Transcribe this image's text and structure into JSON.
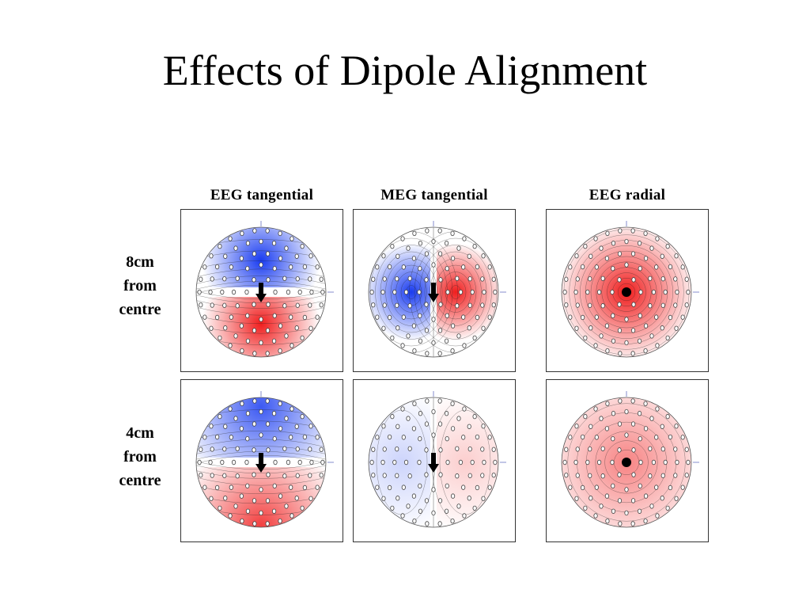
{
  "slide": {
    "title": "Effects of Dipole Alignment"
  },
  "columns": [
    {
      "label": "EEG tangential",
      "kind": "eeg-tan"
    },
    {
      "label": "MEG tangential",
      "kind": "meg-tan"
    },
    {
      "label": "EEG radial",
      "kind": "eeg-rad"
    }
  ],
  "rows": [
    {
      "lines": [
        "8cm",
        "from",
        "centre"
      ],
      "depth": "shallow"
    },
    {
      "lines": [
        "4cm",
        "from",
        "centre"
      ],
      "depth": "deep"
    }
  ],
  "colors": {
    "negative": "#1a3cf0",
    "positive": "#f01e1e",
    "neutral": "#ffffff",
    "dipole": "#000000"
  }
}
